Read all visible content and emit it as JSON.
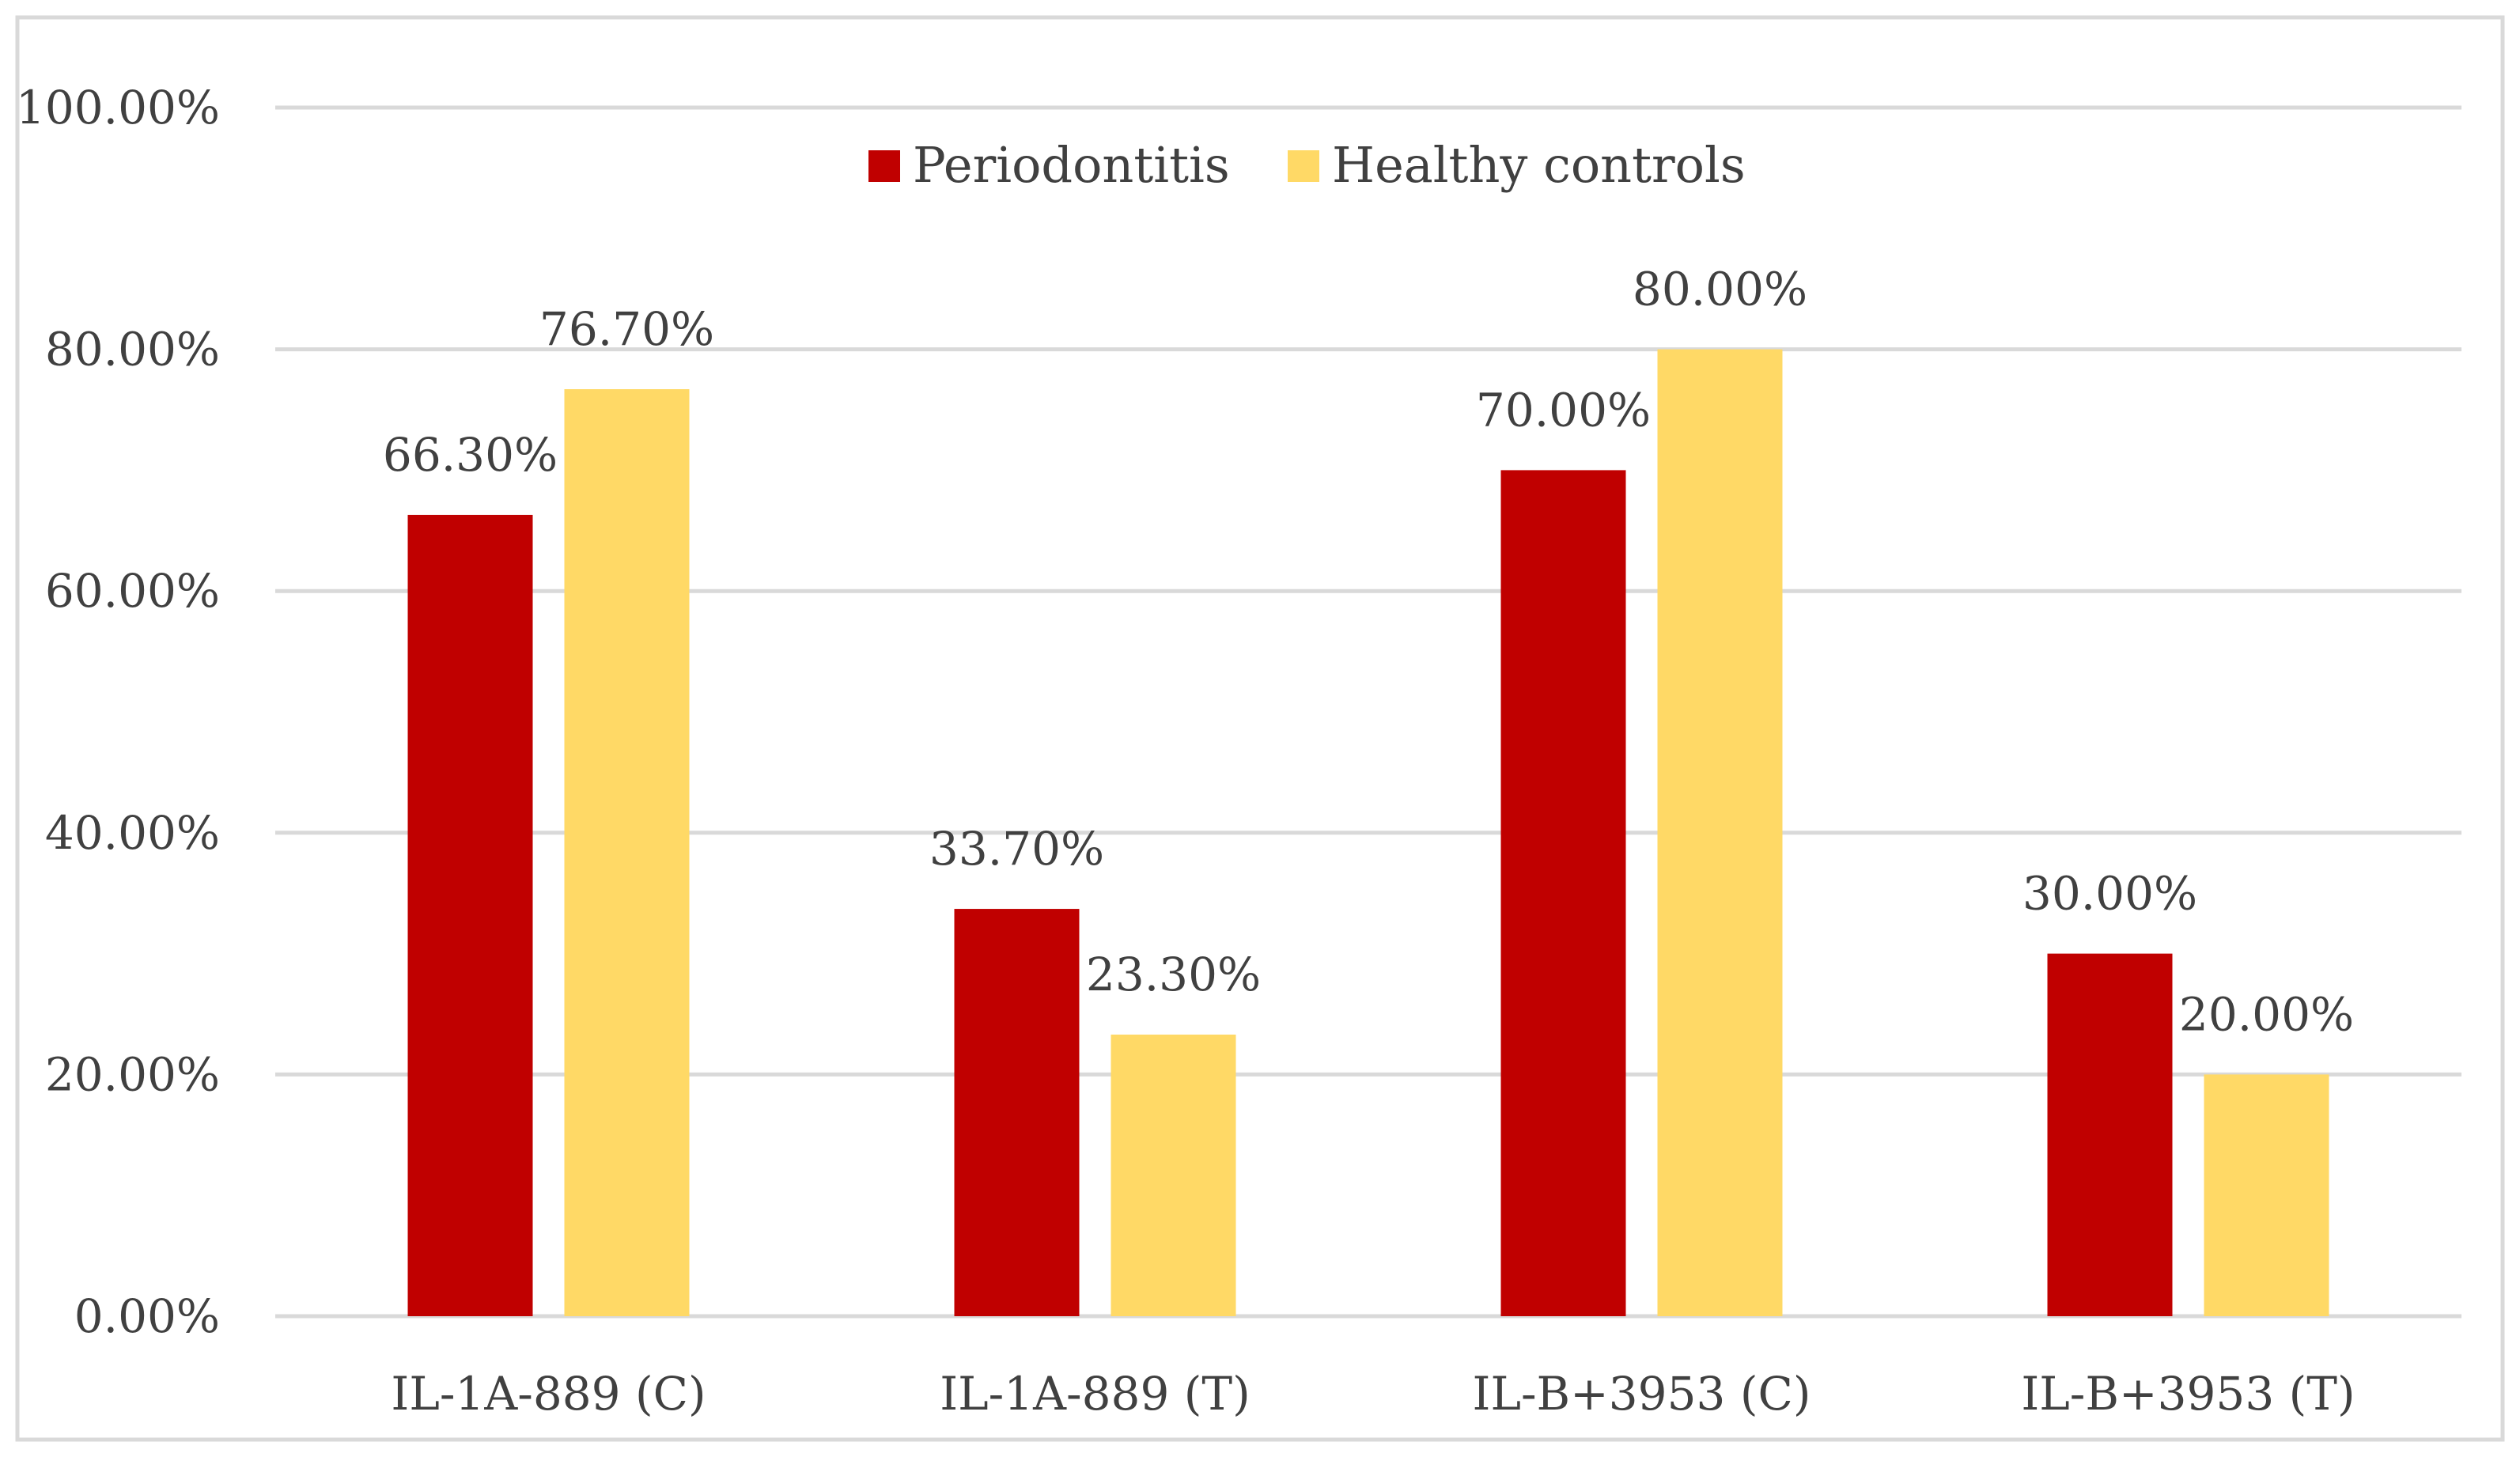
{
  "chart_data": {
    "type": "bar",
    "categories": [
      "IL-1A-889 (C)",
      "IL-1A-889 (T)",
      "IL-B+3953 (C)",
      "IL-B+3953 (T)"
    ],
    "series": [
      {
        "name": "Periodontitis",
        "values": [
          66.3,
          33.7,
          70.0,
          30.0
        ],
        "color": "#C00000"
      },
      {
        "name": "Healthy controls",
        "values": [
          76.7,
          23.3,
          80.0,
          20.0
        ],
        "color": "#FFD966"
      }
    ],
    "data_labels": [
      [
        "66.30%",
        "33.70%",
        "70.00%",
        "30.00%"
      ],
      [
        "76.70%",
        "23.30%",
        "80.00%",
        "20.00%"
      ]
    ],
    "yticks": [
      0,
      20,
      40,
      60,
      80,
      100
    ],
    "ytick_labels": [
      "0.00%",
      "20.00%",
      "40.00%",
      "60.00%",
      "80.00%",
      "100.00%"
    ],
    "ylim": [
      0,
      100
    ],
    "title": "",
    "xlabel": "",
    "ylabel": "",
    "grid": true,
    "legend_position": "top-center",
    "gridline_color": "#D9D9D9",
    "border_color": "#D9D9D9"
  }
}
